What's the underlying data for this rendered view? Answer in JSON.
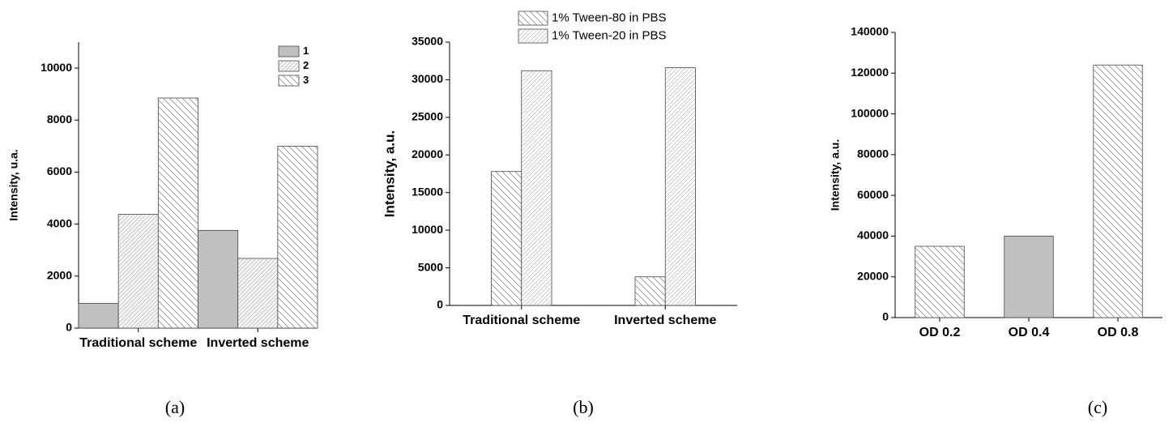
{
  "chart_data": [
    {
      "type": "bar",
      "ylabel": "Intensity, u.a.",
      "panel_label": "(a)",
      "categories": [
        "Traditional scheme",
        "Inverted scheme"
      ],
      "series": [
        {
          "name": "1",
          "color": "#c0c0c0",
          "pattern": "solid",
          "values": [
            950,
            3760
          ]
        },
        {
          "name": "2",
          "color": "#f4f4f4",
          "pattern": "fine",
          "values": [
            4380,
            2680
          ]
        },
        {
          "name": "3",
          "color": "#ffffff",
          "pattern": "back",
          "values": [
            8850,
            7000
          ]
        }
      ],
      "ylim": [
        0,
        11000
      ],
      "yticks": [
        0,
        2000,
        4000,
        6000,
        8000,
        10000
      ],
      "legend": "upper-right",
      "legend_bold": true
    },
    {
      "type": "bar",
      "ylabel": "Intensity, a.u.",
      "panel_label": "(b)",
      "categories": [
        "Traditional scheme",
        "Inverted scheme"
      ],
      "series": [
        {
          "name": "1% Tween-80 in PBS",
          "color": "#ffffff",
          "pattern": "back",
          "values": [
            17800,
            3800
          ]
        },
        {
          "name": "1% Tween-20 in PBS",
          "color": "#ffffff",
          "pattern": "fine",
          "values": [
            31200,
            31600
          ]
        }
      ],
      "ylim": [
        0,
        35000
      ],
      "yticks": [
        0,
        5000,
        10000,
        15000,
        20000,
        25000,
        30000,
        35000
      ],
      "legend": "top-center",
      "legend_bold": false
    },
    {
      "type": "bar",
      "ylabel": "Intensity, a.u.",
      "panel_label": "(c)",
      "categories": [
        "OD 0.2",
        "OD 0.4",
        "OD 0.8"
      ],
      "values": [
        35000,
        40000,
        124000
      ],
      "colors": [
        "#ffffff",
        "#c0c0c0",
        "#ffffff"
      ],
      "patterns": [
        "back",
        "solid",
        "back"
      ],
      "ylim": [
        0,
        140000
      ],
      "yticks": [
        0,
        20000,
        40000,
        60000,
        80000,
        100000,
        120000,
        140000
      ]
    }
  ]
}
